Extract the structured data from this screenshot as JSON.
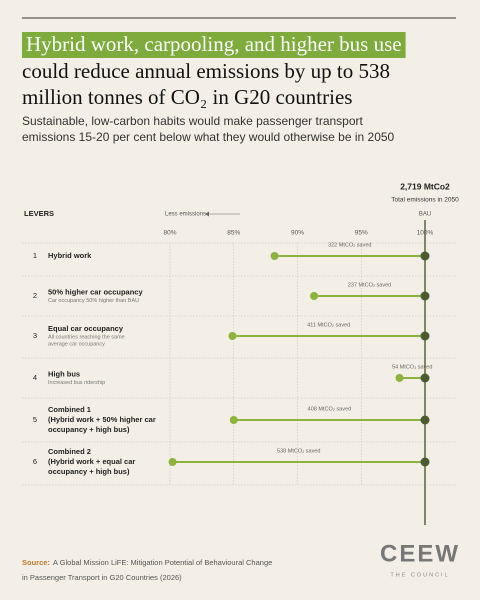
{
  "chart_data": {
    "type": "dumbbell",
    "title_highlight": "Hybrid work, carpooling, and higher bus use",
    "title_lines": [
      "could reduce annual emissions by up to 538",
      "million tonnes of CO₂ in G20 countries"
    ],
    "subtitle_lines": [
      "Sustainable, low-carbon habits would make passenger transport",
      "emissions 15-20 per cent below what they would otherwise be in 2050"
    ],
    "total": "2,719 MtCo2",
    "total_note": "Total emissions in 2050",
    "levers_label": "LEVERS",
    "direction_label": "Less emissions",
    "baseline_label": "BAU",
    "baseline": 100,
    "xlim": [
      78,
      101.5
    ],
    "xticks": [
      {
        "value": 80,
        "label": "80%"
      },
      {
        "value": 85,
        "label": "85%"
      },
      {
        "value": 90,
        "label": "90%"
      },
      {
        "value": 95,
        "label": "95%"
      },
      {
        "value": 100,
        "label": "100%"
      }
    ],
    "grid": true,
    "line_color": "#8cb43c",
    "baseline_color": "#4c5c30",
    "rows": [
      {
        "number": 1,
        "name": [
          "Hybrid work"
        ],
        "note": [],
        "value": 88.2,
        "saved": 322,
        "saved_label": "322 MtCO₂ saved"
      },
      {
        "number": 2,
        "name": [
          "50% higher car occupancy"
        ],
        "note": [
          "Car occupancy 50% higher than BAU"
        ],
        "value": 91.3,
        "saved": 237,
        "saved_label": "237 MtCO₂ saved"
      },
      {
        "number": 3,
        "name": [
          "Equal car occupancy"
        ],
        "note": [
          "All countries reaching the same",
          "average car occupancy"
        ],
        "value": 84.9,
        "saved": 411,
        "saved_label": "411 MtCO₂ saved"
      },
      {
        "number": 4,
        "name": [
          "High bus"
        ],
        "note": [
          "Increased bus ridership"
        ],
        "value": 98.0,
        "saved": 54,
        "saved_label": "54 MtCO₂ saved"
      },
      {
        "number": 5,
        "name": [
          "Combined 1",
          "(Hybrid work + 50% higher car",
          "occupancy + high bus)"
        ],
        "note": [],
        "value": 85.0,
        "saved": 408,
        "saved_label": "408 MtCO₂ saved"
      },
      {
        "number": 6,
        "name": [
          "Combined 2",
          "(Hybrid work + equal car",
          "occupancy + high bus)"
        ],
        "note": [],
        "value": 80.2,
        "saved": 538,
        "saved_label": "538 MtCO₂ saved"
      }
    ],
    "source_label": "Source:",
    "source_lines": [
      "A Global Mission LiFE: Mitigation Potential of Behavioural Change",
      "in Passenger Transport in G20 Countries (2026)"
    ],
    "logo": "CEEW",
    "logo_tagline": "THE COUNCIL"
  }
}
